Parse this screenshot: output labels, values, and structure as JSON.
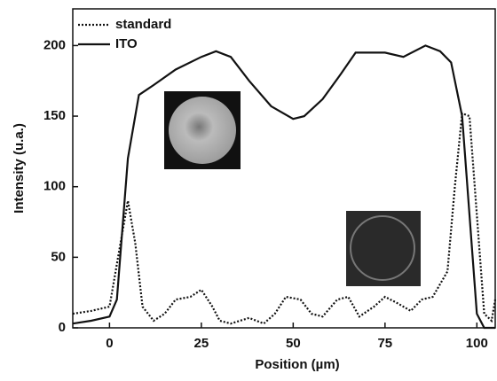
{
  "chart_data": {
    "type": "line",
    "x_label": "Position (µm)",
    "y_label": "Intensity (u.a.)",
    "xlim": [
      -10,
      105
    ],
    "ylim": [
      0,
      226
    ],
    "xticks": [
      0,
      25,
      50,
      75,
      100
    ],
    "yticks": [
      0,
      50,
      100,
      150,
      200
    ],
    "legend": "top-left",
    "series": [
      {
        "name": "standard",
        "color": "#111111",
        "dash": "dotted",
        "x": [
          -10,
          -5,
          0,
          3,
          5,
          7,
          9,
          12,
          15,
          18,
          22,
          25,
          28,
          30,
          33,
          38,
          42,
          45,
          48,
          52,
          55,
          58,
          62,
          65,
          68,
          72,
          75,
          78,
          82,
          85,
          88,
          92,
          94,
          96,
          98,
          100,
          102,
          104,
          105
        ],
        "values": [
          10,
          12,
          15,
          60,
          90,
          60,
          15,
          5,
          10,
          20,
          22,
          27,
          15,
          5,
          3,
          7,
          3,
          10,
          22,
          20,
          10,
          8,
          20,
          22,
          8,
          15,
          22,
          18,
          12,
          20,
          22,
          40,
          100,
          152,
          150,
          80,
          10,
          5,
          20
        ]
      },
      {
        "name": "ITO",
        "color": "#111111",
        "dash": "solid",
        "x": [
          -10,
          -5,
          0,
          2,
          5,
          8,
          12,
          18,
          25,
          29,
          33,
          38,
          44,
          50,
          53,
          58,
          63,
          67,
          75,
          80,
          86,
          90,
          93,
          96,
          98,
          100,
          102,
          105
        ],
        "values": [
          3,
          5,
          8,
          20,
          120,
          165,
          172,
          183,
          192,
          196,
          192,
          175,
          157,
          148,
          150,
          162,
          180,
          195,
          195,
          192,
          200,
          196,
          188,
          150,
          80,
          10,
          0,
          0
        ]
      }
    ]
  }
}
